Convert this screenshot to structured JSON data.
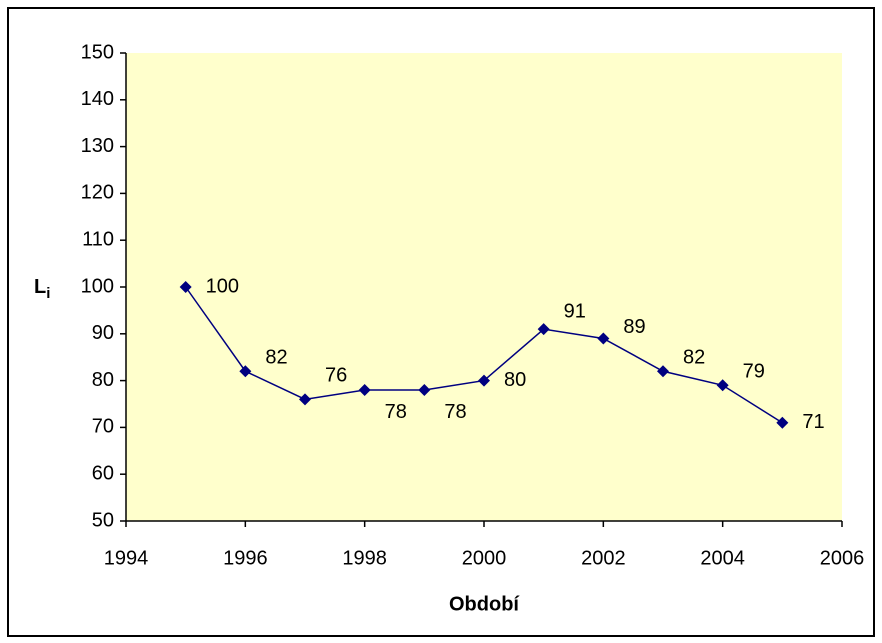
{
  "chart_data": {
    "type": "line",
    "xlabel": "Období",
    "ylabel": "L",
    "ylabel_subscript": "i",
    "x": [
      1995,
      1996,
      1997,
      1998,
      1999,
      2000,
      2001,
      2002,
      2003,
      2004,
      2005
    ],
    "series": [
      {
        "color": "#000080",
        "values": [
          100,
          82,
          76,
          78,
          78,
          80,
          91,
          89,
          82,
          79,
          71
        ]
      }
    ],
    "xlim": [
      1994,
      2006
    ],
    "xticks": [
      1994,
      1996,
      1998,
      2000,
      2002,
      2004,
      2006
    ],
    "ylim": [
      50,
      150
    ],
    "yticks": [
      50,
      60,
      70,
      80,
      90,
      100,
      110,
      120,
      130,
      140,
      150
    ],
    "plot_background": "#ffffcc"
  }
}
